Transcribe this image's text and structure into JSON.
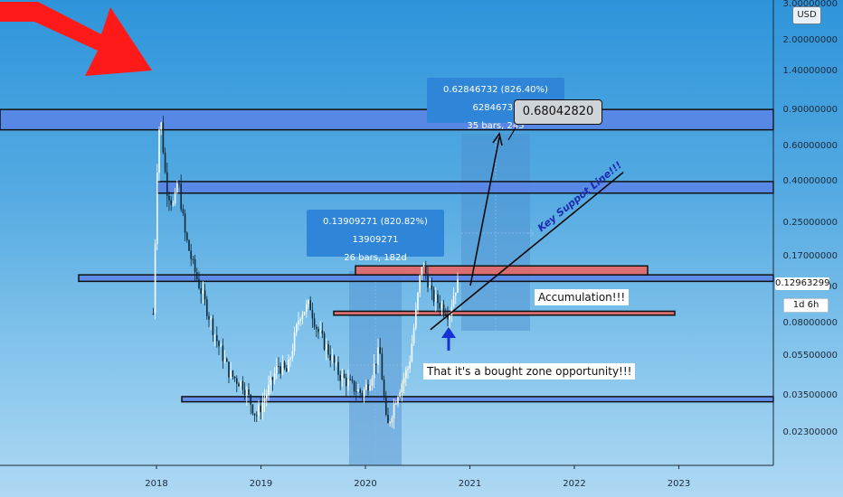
{
  "chart_data": {
    "type": "candlestick",
    "scale": "log",
    "currency": "USD",
    "timeframe": "1d 6h",
    "x_ticks": [
      "2018",
      "2019",
      "2020",
      "2021",
      "2022",
      "2023"
    ],
    "y_ticks": [
      "3.00000000",
      "2.00000000",
      "1.40000000",
      "0.90000000",
      "0.60000000",
      "0.40000000",
      "0.25000000",
      "0.17000000",
      "0.12000000",
      "0.08000000",
      "0.05500000",
      "0.03500000",
      "0.02300000"
    ],
    "ylim": [
      0.016,
      3.2
    ],
    "current_price": "0.12963299",
    "approx_close_series": [
      [
        "2017-12-20",
        0.09
      ],
      [
        "2018-01-06",
        0.65
      ],
      [
        "2018-01-15",
        0.85
      ],
      [
        "2018-02-05",
        0.38
      ],
      [
        "2018-03-01",
        0.3
      ],
      [
        "2018-03-15",
        0.42
      ],
      [
        "2018-04-10",
        0.22
      ],
      [
        "2018-05-10",
        0.15
      ],
      [
        "2018-06-20",
        0.1
      ],
      [
        "2018-08-01",
        0.065
      ],
      [
        "2018-09-15",
        0.045
      ],
      [
        "2018-11-01",
        0.04
      ],
      [
        "2018-12-15",
        0.028
      ],
      [
        "2019-01-20",
        0.036
      ],
      [
        "2019-03-01",
        0.05
      ],
      [
        "2019-04-01",
        0.046
      ],
      [
        "2019-05-15",
        0.09
      ],
      [
        "2019-06-20",
        0.1
      ],
      [
        "2019-07-15",
        0.075
      ],
      [
        "2019-08-20",
        0.06
      ],
      [
        "2019-10-01",
        0.045
      ],
      [
        "2019-11-10",
        0.04
      ],
      [
        "2019-12-20",
        0.036
      ],
      [
        "2020-01-15",
        0.042
      ],
      [
        "2020-02-20",
        0.06
      ],
      [
        "2020-03-15",
        0.024
      ],
      [
        "2020-04-20",
        0.036
      ],
      [
        "2020-06-01",
        0.05
      ],
      [
        "2020-06-25",
        0.09
      ],
      [
        "2020-07-15",
        0.16
      ],
      [
        "2020-08-01",
        0.14
      ],
      [
        "2020-08-20",
        0.11
      ],
      [
        "2020-09-20",
        0.1
      ],
      [
        "2020-10-20",
        0.09
      ],
      [
        "2020-11-10",
        0.12
      ],
      [
        "2020-11-25",
        0.13
      ]
    ],
    "horizontal_zones": [
      {
        "low": 0.73,
        "high": 0.92,
        "style": "blue-zone"
      },
      {
        "low": 0.355,
        "high": 0.405,
        "style": "blue-zone"
      },
      {
        "low": 0.13,
        "high": 0.14,
        "style": "blue-zone"
      },
      {
        "low": 0.033,
        "high": 0.035,
        "style": "blue-zone"
      },
      {
        "low": 0.14,
        "high": 0.155,
        "style": "red-zone"
      },
      {
        "low": 0.0885,
        "high": 0.0925,
        "style": "red-zone"
      }
    ],
    "trendline": {
      "label": "Key Suppot Line!!!",
      "from": [
        "2020-08-15",
        0.075
      ],
      "to": [
        "2022-06-20",
        0.45
      ]
    },
    "measure_1": {
      "label_line1": "0.13909271 (820.82%) 13909271",
      "label_line2": "26 bars, 182d"
    },
    "measure_2": {
      "label_line1": "0.62846732 (826.40%) 62846732",
      "label_line2": "35 bars, 245",
      "target": "0.68042820"
    },
    "annotations": [
      "Accumulation!!!",
      "That it's a bought zone opportunity!!!"
    ]
  }
}
